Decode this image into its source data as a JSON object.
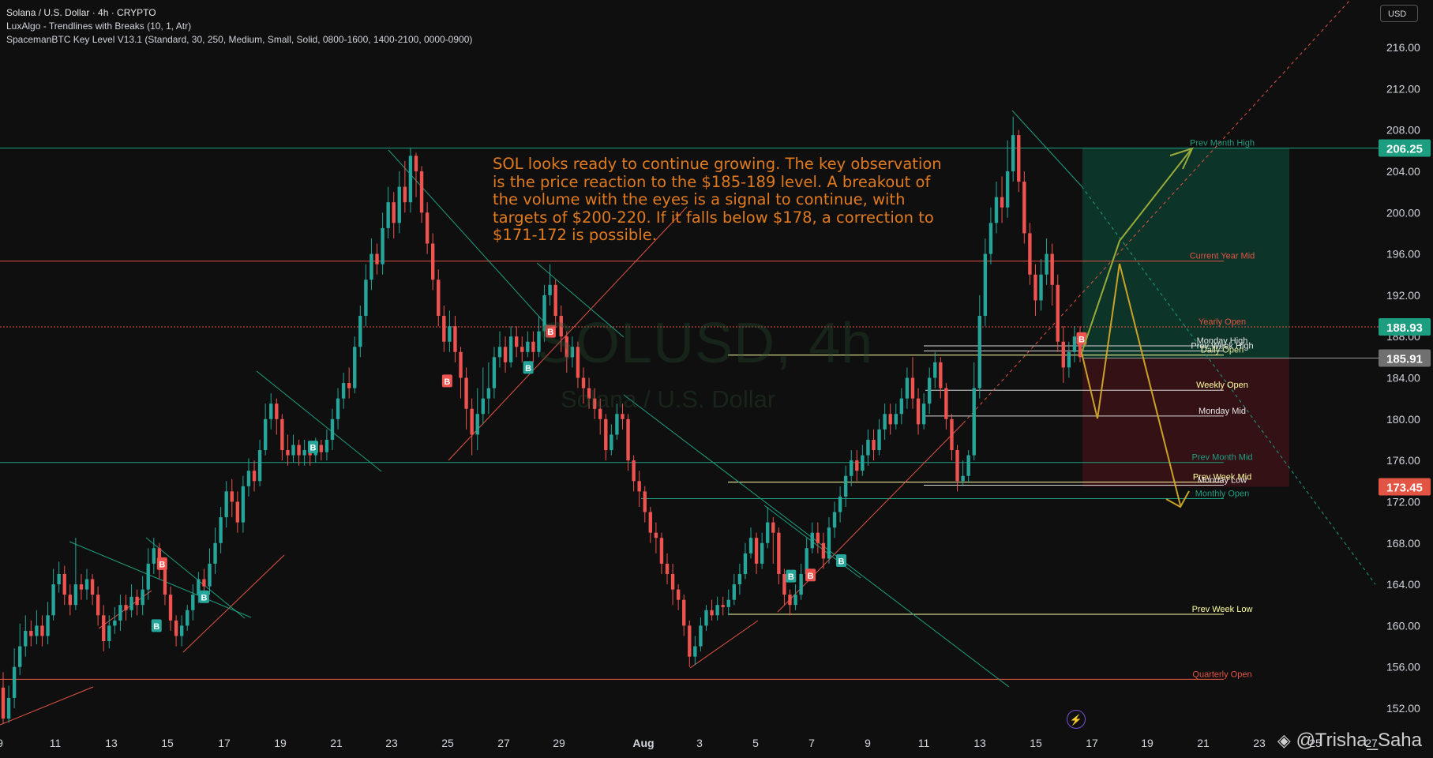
{
  "header": {
    "symbol_line": "Solana / U.S. Dollar · 4h · CRYPTO",
    "indicator_1": "LuxAlgo - Trendlines with Breaks (10, 1, Atr)",
    "indicator_2": "SpacemanBTC Key Level V13.1 (Standard, 30, 250, Medium, Small, Solid, 0800-1600, 1400-2100, 0000-0900)",
    "currency_button": "USD"
  },
  "annotation": {
    "text": "SOL looks ready to continue growing. The key observation is the price reaction to the $185-189 level. A breakout of the volume with the eyes is a signal to continue, with targets of $200-220. If it falls below $178, a correction to $171-172 is possible."
  },
  "watermark": {
    "main": "SOLUSD, 4h",
    "sub": "Solana / U.S. Dollar",
    "author": "@Trisha_Saha"
  },
  "colors": {
    "background": "#0f0f0f",
    "up": "#26a69a",
    "down": "#ef5350",
    "teal_line": "#1e9e80",
    "red_line": "#e25444",
    "yellow_line": "#ffffa0",
    "arrow_green": "#9aaa3a",
    "arrow_gold": "#c9a227",
    "tp_zone": "#0d3b2d",
    "sl_zone": "#3b1216"
  },
  "chart_data": {
    "type": "candlestick",
    "x_axis_labels": [
      "9",
      "11",
      "13",
      "15",
      "17",
      "19",
      "21",
      "23",
      "25",
      "27",
      "29",
      "Aug",
      "3",
      "5",
      "7",
      "9",
      "11",
      "13",
      "15",
      "17",
      "19",
      "21",
      "23",
      "25",
      "27"
    ],
    "y_ticks": [
      216.0,
      212.0,
      208.0,
      204.0,
      200.0,
      196.0,
      192.0,
      188.0,
      184.0,
      180.0,
      176.0,
      172.0,
      168.0,
      164.0,
      160.0,
      156.0,
      152.0
    ],
    "ylim": [
      150.4,
      219.3
    ],
    "price_tags": [
      {
        "value": "206.25",
        "color": "#1e9e80"
      },
      {
        "value": "188.93",
        "color": "#1e9e80"
      },
      {
        "value": "185.91",
        "color": "#707070"
      },
      {
        "value": "173.45",
        "color": "#e25444"
      }
    ],
    "key_levels": [
      {
        "label": "Prev Month High",
        "value": 206.25
      },
      {
        "label": "Current Year Mid",
        "value": 195.3
      },
      {
        "label": "Yearly Open",
        "value": 188.93
      },
      {
        "label": "Monday High",
        "value": 187.1
      },
      {
        "label": "Prev Week High",
        "value": 186.6
      },
      {
        "label": "Daily Open",
        "value": 186.2
      },
      {
        "label": "Weekly Open",
        "value": 182.8
      },
      {
        "label": "Monday Mid",
        "value": 180.3
      },
      {
        "label": "Prev Month Mid",
        "value": 175.8
      },
      {
        "label": "Prev Week Mid",
        "value": 173.9
      },
      {
        "label": "Monday Low",
        "value": 173.6
      },
      {
        "label": "Monthly Open",
        "value": 172.3
      },
      {
        "label": "Prev Week Low",
        "value": 161.1
      },
      {
        "label": "Quarterly Open",
        "value": 154.8
      }
    ],
    "markers": [
      {
        "type": "B",
        "side": "buy",
        "x": "14.6",
        "price": 160.0
      },
      {
        "type": "B",
        "side": "sell",
        "x": "14.8",
        "price": 166.0
      },
      {
        "type": "B",
        "side": "buy",
        "x": "16.3",
        "price": 162.8
      },
      {
        "type": "B",
        "side": "buy",
        "x": "20.2",
        "price": 177.3
      },
      {
        "type": "B",
        "side": "sell",
        "x": "25.0",
        "price": 183.7
      },
      {
        "type": "B",
        "side": "buy",
        "x": "27.9",
        "price": 185.0
      },
      {
        "type": "B",
        "side": "sell",
        "x": "28.7",
        "price": 188.5
      },
      {
        "type": "B",
        "side": "buy",
        "x": "Aug 5.3",
        "price": 164.8
      },
      {
        "type": "B",
        "side": "sell",
        "x": "Aug 6.0",
        "price": 164.9
      },
      {
        "type": "B",
        "side": "buy",
        "x": "Aug 7.1",
        "price": 166.3
      },
      {
        "type": "B",
        "side": "sell",
        "x": "Aug 15.7",
        "price": 187.8
      }
    ],
    "candles": [
      [
        154.0,
        151.0,
        155.5,
        150.5
      ],
      [
        151.0,
        153.0,
        154.2,
        150.6
      ],
      [
        153.0,
        156.0,
        157.8,
        152.0
      ],
      [
        156.0,
        158.0,
        160.2,
        155.2
      ],
      [
        158.0,
        159.5,
        161.0,
        157.0
      ],
      [
        159.5,
        159.0,
        160.5,
        158.0
      ],
      [
        159.0,
        160.0,
        161.5,
        158.2
      ],
      [
        160.0,
        159.0,
        161.0,
        158.0
      ],
      [
        159.0,
        161.0,
        162.3,
        158.2
      ],
      [
        161.0,
        164.0,
        165.5,
        160.5
      ],
      [
        164.0,
        165.0,
        166.2,
        163.2
      ],
      [
        165.0,
        163.0,
        165.8,
        162.0
      ],
      [
        163.0,
        162.0,
        164.0,
        161.0
      ],
      [
        162.0,
        164.0,
        168.5,
        161.5
      ],
      [
        164.0,
        163.5,
        165.0,
        162.5
      ],
      [
        163.5,
        164.5,
        165.5,
        162.5
      ],
      [
        164.5,
        163.0,
        165.0,
        162.0
      ],
      [
        163.0,
        161.0,
        163.8,
        160.0
      ],
      [
        161.0,
        158.5,
        162.0,
        157.5
      ],
      [
        158.5,
        160.0,
        161.0,
        157.8
      ],
      [
        160.0,
        160.5,
        161.8,
        159.2
      ],
      [
        160.5,
        162.0,
        163.0,
        159.5
      ],
      [
        162.0,
        161.5,
        163.0,
        160.5
      ],
      [
        161.5,
        162.8,
        164.0,
        160.8
      ],
      [
        162.8,
        162.0,
        163.5,
        161.0
      ],
      [
        162.0,
        163.5,
        164.8,
        161.0
      ],
      [
        163.5,
        166.0,
        167.5,
        162.5
      ],
      [
        166.0,
        167.5,
        168.5,
        165.0
      ],
      [
        167.5,
        165.5,
        168.0,
        164.5
      ],
      [
        165.5,
        163.0,
        166.0,
        162.0
      ],
      [
        163.0,
        160.5,
        163.8,
        159.5
      ],
      [
        160.5,
        159.0,
        161.0,
        158.0
      ],
      [
        159.0,
        160.0,
        161.0,
        158.0
      ],
      [
        160.0,
        161.5,
        162.0,
        159.5
      ],
      [
        161.5,
        163.0,
        164.0,
        160.5
      ],
      [
        163.0,
        164.5,
        165.2,
        162.2
      ],
      [
        164.5,
        163.8,
        165.5,
        162.5
      ],
      [
        163.8,
        166.0,
        167.5,
        163.0
      ],
      [
        166.0,
        168.0,
        169.5,
        165.0
      ],
      [
        168.0,
        170.5,
        171.5,
        167.0
      ],
      [
        170.5,
        173.0,
        174.0,
        169.5
      ],
      [
        173.0,
        172.0,
        174.2,
        170.5
      ],
      [
        172.0,
        170.0,
        173.0,
        169.0
      ],
      [
        170.0,
        173.5,
        174.5,
        169.0
      ],
      [
        173.5,
        175.0,
        176.2,
        172.5
      ],
      [
        175.0,
        174.0,
        176.0,
        173.0
      ],
      [
        174.0,
        177.0,
        178.0,
        173.5
      ],
      [
        177.0,
        180.0,
        181.5,
        176.5
      ],
      [
        180.0,
        181.5,
        182.5,
        179.0
      ],
      [
        181.5,
        180.0,
        182.0,
        178.5
      ],
      [
        180.0,
        177.0,
        180.5,
        176.0
      ],
      [
        177.0,
        176.5,
        178.5,
        175.5
      ],
      [
        176.5,
        177.5,
        178.5,
        175.8
      ],
      [
        177.5,
        176.5,
        178.0,
        175.5
      ],
      [
        176.5,
        177.0,
        178.0,
        175.5
      ],
      [
        177.0,
        176.5,
        177.8,
        175.5
      ],
      [
        176.5,
        177.5,
        178.2,
        175.8
      ],
      [
        177.5,
        176.8,
        178.0,
        176.0
      ],
      [
        176.8,
        178.0,
        179.0,
        176.0
      ],
      [
        178.0,
        180.0,
        181.0,
        177.0
      ],
      [
        180.0,
        182.0,
        183.0,
        179.0
      ],
      [
        182.0,
        183.5,
        184.5,
        181.0
      ],
      [
        183.5,
        183.0,
        185.0,
        182.0
      ],
      [
        183.0,
        187.0,
        188.0,
        182.5
      ],
      [
        187.0,
        190.0,
        191.0,
        186.0
      ],
      [
        190.0,
        193.5,
        195.0,
        189.0
      ],
      [
        193.5,
        196.0,
        197.5,
        192.5
      ],
      [
        196.0,
        195.0,
        197.0,
        194.0
      ],
      [
        195.0,
        198.5,
        200.0,
        194.0
      ],
      [
        198.5,
        201.0,
        202.5,
        197.5
      ],
      [
        201.0,
        199.0,
        202.0,
        197.5
      ],
      [
        199.0,
        202.5,
        204.0,
        198.0
      ],
      [
        202.5,
        201.0,
        205.0,
        200.0
      ],
      [
        201.0,
        205.5,
        206.3,
        200.0
      ],
      [
        205.5,
        204.0,
        205.8,
        201.5
      ],
      [
        204.0,
        200.0,
        204.5,
        199.0
      ],
      [
        200.0,
        197.0,
        201.0,
        196.0
      ],
      [
        197.0,
        193.5,
        198.0,
        192.5
      ],
      [
        193.5,
        190.0,
        194.5,
        189.0
      ],
      [
        190.0,
        187.5,
        191.0,
        186.5
      ],
      [
        187.5,
        189.0,
        190.5,
        186.5
      ],
      [
        189.0,
        186.5,
        190.0,
        185.5
      ],
      [
        186.5,
        184.0,
        187.0,
        182.0
      ],
      [
        184.0,
        181.0,
        185.0,
        179.0
      ],
      [
        181.0,
        178.5,
        182.0,
        176.5
      ],
      [
        178.5,
        180.5,
        183.0,
        177.0
      ],
      [
        180.5,
        182.0,
        185.0,
        179.5
      ],
      [
        182.0,
        183.0,
        185.5,
        180.5
      ],
      [
        183.0,
        186.0,
        187.0,
        182.0
      ],
      [
        186.0,
        187.0,
        188.5,
        185.0
      ],
      [
        187.0,
        185.5,
        188.0,
        184.5
      ],
      [
        185.5,
        188.0,
        189.0,
        185.0
      ],
      [
        188.0,
        187.0,
        189.0,
        186.0
      ],
      [
        187.0,
        186.5,
        188.0,
        185.5
      ],
      [
        186.5,
        187.5,
        188.5,
        186.0
      ],
      [
        187.5,
        186.5,
        188.5,
        185.5
      ],
      [
        186.5,
        188.5,
        190.0,
        186.0
      ],
      [
        188.5,
        192.0,
        193.0,
        187.5
      ],
      [
        192.0,
        193.0,
        195.0,
        191.0
      ],
      [
        193.0,
        190.0,
        193.5,
        189.0
      ],
      [
        190.0,
        188.0,
        191.0,
        186.5
      ],
      [
        188.0,
        186.0,
        188.5,
        184.5
      ],
      [
        186.0,
        187.0,
        188.0,
        185.0
      ],
      [
        187.0,
        184.0,
        187.5,
        183.0
      ],
      [
        184.0,
        183.0,
        185.0,
        181.5
      ],
      [
        183.0,
        182.0,
        184.0,
        181.0
      ],
      [
        182.0,
        181.0,
        183.0,
        180.0
      ],
      [
        181.0,
        180.0,
        182.0,
        178.5
      ],
      [
        180.0,
        177.0,
        180.5,
        176.0
      ],
      [
        177.0,
        178.5,
        179.5,
        176.5
      ],
      [
        178.5,
        180.5,
        181.5,
        178.0
      ],
      [
        180.5,
        180.0,
        181.5,
        179.0
      ],
      [
        180.0,
        176.0,
        180.5,
        175.0
      ],
      [
        176.0,
        174.0,
        176.5,
        173.0
      ],
      [
        174.0,
        173.0,
        175.0,
        171.5
      ],
      [
        173.0,
        171.0,
        173.5,
        170.0
      ],
      [
        171.0,
        169.0,
        171.5,
        168.0
      ],
      [
        169.0,
        168.5,
        170.0,
        167.0
      ],
      [
        168.5,
        166.0,
        169.0,
        165.0
      ],
      [
        166.0,
        165.0,
        167.0,
        164.0
      ],
      [
        165.0,
        163.5,
        166.0,
        162.0
      ],
      [
        163.5,
        162.5,
        164.0,
        161.5
      ],
      [
        162.5,
        160.0,
        163.0,
        159.0
      ],
      [
        160.0,
        157.0,
        160.5,
        156.0
      ],
      [
        157.0,
        158.0,
        159.0,
        156.2
      ],
      [
        158.0,
        160.0,
        160.8,
        157.5
      ],
      [
        160.0,
        161.5,
        162.0,
        159.5
      ],
      [
        161.5,
        161.0,
        162.5,
        160.5
      ],
      [
        161.0,
        162.0,
        162.8,
        160.5
      ],
      [
        162.0,
        161.8,
        162.8,
        161.0
      ],
      [
        161.8,
        162.5,
        163.5,
        161.0
      ],
      [
        162.5,
        164.0,
        165.0,
        162.0
      ],
      [
        164.0,
        165.0,
        166.0,
        163.0
      ],
      [
        165.0,
        167.0,
        168.0,
        164.5
      ],
      [
        167.0,
        168.5,
        169.5,
        166.5
      ],
      [
        168.5,
        166.0,
        169.0,
        165.0
      ],
      [
        166.0,
        168.0,
        169.0,
        165.5
      ],
      [
        168.0,
        170.0,
        171.5,
        167.5
      ],
      [
        170.0,
        169.0,
        170.5,
        166.0
      ],
      [
        169.0,
        165.0,
        169.5,
        164.0
      ],
      [
        165.0,
        163.0,
        165.5,
        162.0
      ],
      [
        163.0,
        162.0,
        163.5,
        161.0
      ],
      [
        162.0,
        163.0,
        164.0,
        161.5
      ],
      [
        163.0,
        165.0,
        166.0,
        162.5
      ],
      [
        165.0,
        167.5,
        168.5,
        164.5
      ],
      [
        167.5,
        169.0,
        170.0,
        167.0
      ],
      [
        169.0,
        168.0,
        170.0,
        167.0
      ],
      [
        168.0,
        166.5,
        169.0,
        165.5
      ],
      [
        166.5,
        169.5,
        170.5,
        166.0
      ],
      [
        169.5,
        171.0,
        172.0,
        168.5
      ],
      [
        171.0,
        172.5,
        173.5,
        170.0
      ],
      [
        172.5,
        174.5,
        175.5,
        171.5
      ],
      [
        174.5,
        176.0,
        177.0,
        173.5
      ],
      [
        176.0,
        175.0,
        177.0,
        174.0
      ],
      [
        175.0,
        176.5,
        177.5,
        174.5
      ],
      [
        176.5,
        178.0,
        179.0,
        175.5
      ],
      [
        178.0,
        177.0,
        179.0,
        176.0
      ],
      [
        177.0,
        179.0,
        180.0,
        176.5
      ],
      [
        179.0,
        180.5,
        181.5,
        178.0
      ],
      [
        180.5,
        179.5,
        181.5,
        178.5
      ],
      [
        179.5,
        180.5,
        181.5,
        179.0
      ],
      [
        180.5,
        182.0,
        183.0,
        179.5
      ],
      [
        182.0,
        184.0,
        185.0,
        181.0
      ],
      [
        184.0,
        182.0,
        186.0,
        181.0
      ],
      [
        182.0,
        179.5,
        183.0,
        178.5
      ],
      [
        179.5,
        181.5,
        182.5,
        179.0
      ],
      [
        181.5,
        184.0,
        185.0,
        180.5
      ],
      [
        184.0,
        185.5,
        186.5,
        183.0
      ],
      [
        185.5,
        183.0,
        186.0,
        182.0
      ],
      [
        183.0,
        180.0,
        183.5,
        179.0
      ],
      [
        180.0,
        177.0,
        180.5,
        176.0
      ],
      [
        177.0,
        174.0,
        177.5,
        173.0
      ],
      [
        174.0,
        174.5,
        176.0,
        173.5
      ],
      [
        174.5,
        176.5,
        177.0,
        173.8
      ],
      [
        176.5,
        183.0,
        185.5,
        176.0
      ],
      [
        183.0,
        190.0,
        192.0,
        182.0
      ],
      [
        190.0,
        196.0,
        197.5,
        189.0
      ],
      [
        196.0,
        199.0,
        200.5,
        195.0
      ],
      [
        199.0,
        201.5,
        203.0,
        198.0
      ],
      [
        201.5,
        200.5,
        203.5,
        199.0
      ],
      [
        200.5,
        204.0,
        207.0,
        199.5
      ],
      [
        204.0,
        207.5,
        209.3,
        203.0
      ],
      [
        207.5,
        203.0,
        208.0,
        202.0
      ],
      [
        203.0,
        198.0,
        204.0,
        197.0
      ],
      [
        198.0,
        194.0,
        199.0,
        193.0
      ],
      [
        194.0,
        191.5,
        195.0,
        190.0
      ],
      [
        191.5,
        194.0,
        195.5,
        190.5
      ],
      [
        194.0,
        196.0,
        197.5,
        193.0
      ],
      [
        196.0,
        193.0,
        197.0,
        191.0
      ],
      [
        193.0,
        187.5,
        194.0,
        186.5
      ],
      [
        187.5,
        185.0,
        189.0,
        183.5
      ],
      [
        185.0,
        186.5,
        187.5,
        184.0
      ],
      [
        186.5,
        188.0,
        189.0,
        185.5
      ],
      [
        188.0,
        186.0,
        189.0,
        185.5
      ]
    ]
  }
}
